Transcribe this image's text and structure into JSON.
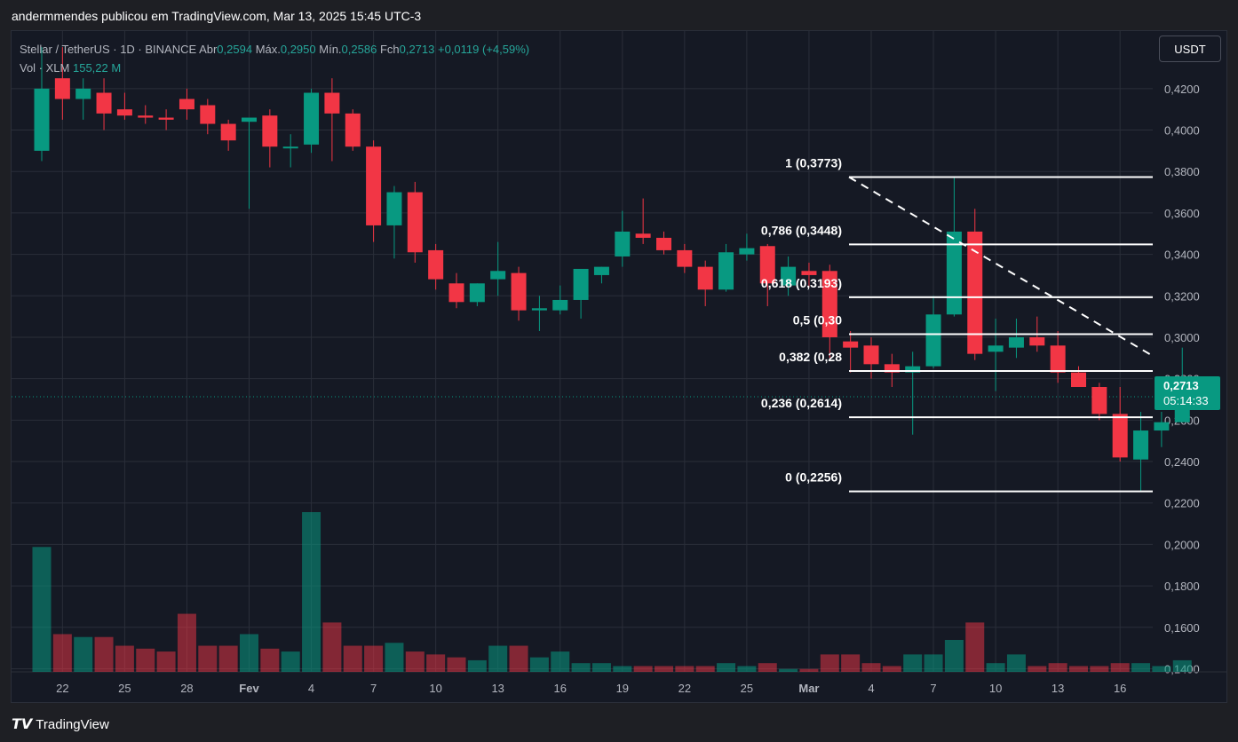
{
  "header": {
    "title": "andermmendes publicou em TradingView.com, Mar 13, 2025 15:45 UTC-3"
  },
  "legend": {
    "symbol": "Stellar / TetherUS · 1D · BINANCE",
    "open_label": "Abr",
    "open": "0,2594",
    "high_label": "Máx.",
    "high": "0,2950",
    "low_label": "Mín.",
    "low": "0,2586",
    "close_label": "Fch",
    "close": "0,2713",
    "change": "+0,0119 (+4,59%)",
    "volume_label": "Vol · XLM",
    "volume": "155,22 M"
  },
  "toolbar": {
    "unit_button": "USDT"
  },
  "price_tag": {
    "price": "0,2713",
    "countdown": "05:14:33"
  },
  "footer": {
    "brand": "TradingView"
  },
  "colors": {
    "up": "#089981",
    "down": "#f23645",
    "background": "#151924",
    "grid": "#2a2e39"
  },
  "chart_data": {
    "type": "candlestick",
    "y_range": [
      0.14,
      0.43
    ],
    "y_ticks": [
      "0,1400",
      "0,1600",
      "0,1800",
      "0,2000",
      "0,2200",
      "0,2400",
      "0,2600",
      "0,2800",
      "0,3000",
      "0,3200",
      "0,3400",
      "0,3600",
      "0,3800",
      "0,4000",
      "0,4200"
    ],
    "x_ticks": [
      "22",
      "25",
      "28",
      "Fev",
      "4",
      "7",
      "10",
      "13",
      "16",
      "19",
      "22",
      "25",
      "Mar",
      "4",
      "7",
      "10",
      "13",
      "16"
    ],
    "bold_ticks": [
      "Fev",
      "Mar"
    ],
    "last_price": 0.2713,
    "candles": [
      {
        "o": 0.39,
        "h": 0.44,
        "l": 0.385,
        "c": 0.42
      },
      {
        "o": 0.425,
        "h": 0.44,
        "l": 0.405,
        "c": 0.415
      },
      {
        "o": 0.415,
        "h": 0.425,
        "l": 0.405,
        "c": 0.42
      },
      {
        "o": 0.418,
        "h": 0.425,
        "l": 0.4,
        "c": 0.408
      },
      {
        "o": 0.41,
        "h": 0.418,
        "l": 0.405,
        "c": 0.407
      },
      {
        "o": 0.407,
        "h": 0.412,
        "l": 0.403,
        "c": 0.406
      },
      {
        "o": 0.406,
        "h": 0.41,
        "l": 0.4,
        "c": 0.405
      },
      {
        "o": 0.415,
        "h": 0.42,
        "l": 0.405,
        "c": 0.41
      },
      {
        "o": 0.412,
        "h": 0.415,
        "l": 0.398,
        "c": 0.403
      },
      {
        "o": 0.403,
        "h": 0.405,
        "l": 0.39,
        "c": 0.395
      },
      {
        "o": 0.404,
        "h": 0.405,
        "l": 0.362,
        "c": 0.406
      },
      {
        "o": 0.407,
        "h": 0.41,
        "l": 0.382,
        "c": 0.392
      },
      {
        "o": 0.392,
        "h": 0.398,
        "l": 0.382,
        "c": 0.392
      },
      {
        "o": 0.393,
        "h": 0.42,
        "l": 0.389,
        "c": 0.418
      },
      {
        "o": 0.418,
        "h": 0.425,
        "l": 0.385,
        "c": 0.408
      },
      {
        "o": 0.408,
        "h": 0.41,
        "l": 0.39,
        "c": 0.392
      },
      {
        "o": 0.392,
        "h": 0.395,
        "l": 0.346,
        "c": 0.354
      },
      {
        "o": 0.354,
        "h": 0.373,
        "l": 0.338,
        "c": 0.37
      },
      {
        "o": 0.37,
        "h": 0.375,
        "l": 0.336,
        "c": 0.341
      },
      {
        "o": 0.342,
        "h": 0.345,
        "l": 0.323,
        "c": 0.328
      },
      {
        "o": 0.326,
        "h": 0.331,
        "l": 0.314,
        "c": 0.317
      },
      {
        "o": 0.317,
        "h": 0.326,
        "l": 0.315,
        "c": 0.326
      },
      {
        "o": 0.328,
        "h": 0.346,
        "l": 0.32,
        "c": 0.332
      },
      {
        "o": 0.331,
        "h": 0.334,
        "l": 0.308,
        "c": 0.313
      },
      {
        "o": 0.313,
        "h": 0.32,
        "l": 0.303,
        "c": 0.314
      },
      {
        "o": 0.313,
        "h": 0.325,
        "l": 0.311,
        "c": 0.318
      },
      {
        "o": 0.318,
        "h": 0.331,
        "l": 0.309,
        "c": 0.333
      },
      {
        "o": 0.33,
        "h": 0.334,
        "l": 0.326,
        "c": 0.334
      },
      {
        "o": 0.339,
        "h": 0.361,
        "l": 0.334,
        "c": 0.351
      },
      {
        "o": 0.35,
        "h": 0.367,
        "l": 0.345,
        "c": 0.348
      },
      {
        "o": 0.348,
        "h": 0.351,
        "l": 0.34,
        "c": 0.342
      },
      {
        "o": 0.342,
        "h": 0.345,
        "l": 0.331,
        "c": 0.334
      },
      {
        "o": 0.334,
        "h": 0.337,
        "l": 0.315,
        "c": 0.323
      },
      {
        "o": 0.323,
        "h": 0.345,
        "l": 0.322,
        "c": 0.341
      },
      {
        "o": 0.34,
        "h": 0.35,
        "l": 0.337,
        "c": 0.343
      },
      {
        "o": 0.344,
        "h": 0.345,
        "l": 0.315,
        "c": 0.326
      },
      {
        "o": 0.325,
        "h": 0.339,
        "l": 0.32,
        "c": 0.334
      },
      {
        "o": 0.332,
        "h": 0.336,
        "l": 0.324,
        "c": 0.33
      },
      {
        "o": 0.332,
        "h": 0.335,
        "l": 0.29,
        "c": 0.3
      },
      {
        "o": 0.298,
        "h": 0.303,
        "l": 0.283,
        "c": 0.295
      },
      {
        "o": 0.296,
        "h": 0.3,
        "l": 0.28,
        "c": 0.287
      },
      {
        "o": 0.287,
        "h": 0.292,
        "l": 0.276,
        "c": 0.283
      },
      {
        "o": 0.283,
        "h": 0.293,
        "l": 0.253,
        "c": 0.286
      },
      {
        "o": 0.286,
        "h": 0.32,
        "l": 0.285,
        "c": 0.311
      },
      {
        "o": 0.311,
        "h": 0.377,
        "l": 0.31,
        "c": 0.351
      },
      {
        "o": 0.351,
        "h": 0.362,
        "l": 0.289,
        "c": 0.292
      },
      {
        "o": 0.293,
        "h": 0.309,
        "l": 0.274,
        "c": 0.296
      },
      {
        "o": 0.295,
        "h": 0.309,
        "l": 0.29,
        "c": 0.3
      },
      {
        "o": 0.3,
        "h": 0.31,
        "l": 0.293,
        "c": 0.296
      },
      {
        "o": 0.296,
        "h": 0.303,
        "l": 0.278,
        "c": 0.283
      },
      {
        "o": 0.283,
        "h": 0.286,
        "l": 0.276,
        "c": 0.276
      },
      {
        "o": 0.276,
        "h": 0.278,
        "l": 0.26,
        "c": 0.263
      },
      {
        "o": 0.263,
        "h": 0.276,
        "l": 0.24,
        "c": 0.242
      },
      {
        "o": 0.241,
        "h": 0.264,
        "l": 0.226,
        "c": 0.255
      },
      {
        "o": 0.255,
        "h": 0.264,
        "l": 0.247,
        "c": 0.259
      },
      {
        "o": 0.259,
        "h": 0.295,
        "l": 0.259,
        "c": 0.271
      }
    ],
    "volumes": [
      43,
      13,
      12,
      12,
      9,
      8,
      7,
      20,
      9,
      9,
      13,
      8,
      7,
      55,
      17,
      9,
      9,
      10,
      7,
      6,
      5,
      4,
      9,
      9,
      5,
      7,
      3,
      3,
      2,
      2,
      2,
      2,
      2,
      3,
      2,
      3,
      1,
      1,
      6,
      6,
      3,
      2,
      6,
      6,
      11,
      17,
      3,
      6,
      2,
      3,
      2,
      2,
      3,
      3,
      2,
      4
    ],
    "volume_max": 55,
    "fibonacci": [
      {
        "label": "1 (0,3773)",
        "value": 0.3773
      },
      {
        "label": "0,786 (0,3448)",
        "value": 0.3448
      },
      {
        "label": "0,618 (0,3193)",
        "value": 0.3193
      },
      {
        "label": "0,5 (0,30",
        "value": 0.3015
      },
      {
        "label": "0,382 (0,28",
        "value": 0.2837
      },
      {
        "label": "0,236 (0,2614)",
        "value": 0.2614
      },
      {
        "label": "0 (0,2256)",
        "value": 0.2256
      }
    ],
    "trendline": {
      "from": 0.3773,
      "to": 0.291
    }
  }
}
